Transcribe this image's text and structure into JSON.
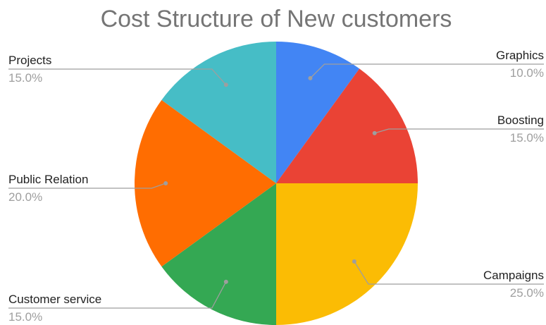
{
  "chart_data": {
    "type": "pie",
    "title": "Cost Structure of New customers",
    "start_angle_deg": 0,
    "direction": "clockwise",
    "slices": [
      {
        "label": "Graphics",
        "value": 10.0,
        "pct_text": "10.0%",
        "color": "#4285F4"
      },
      {
        "label": "Boosting",
        "value": 15.0,
        "pct_text": "15.0%",
        "color": "#EA4335"
      },
      {
        "label": "Campaigns",
        "value": 25.0,
        "pct_text": "25.0%",
        "color": "#FBBC04"
      },
      {
        "label": "Customer service",
        "value": 15.0,
        "pct_text": "15.0%",
        "color": "#34A853"
      },
      {
        "label": "Public Relation",
        "value": 20.0,
        "pct_text": "20.0%",
        "color": "#FF6D01"
      },
      {
        "label": "Projects",
        "value": 15.0,
        "pct_text": "15.0%",
        "color": "#46BDC6"
      }
    ],
    "legend": "none"
  }
}
